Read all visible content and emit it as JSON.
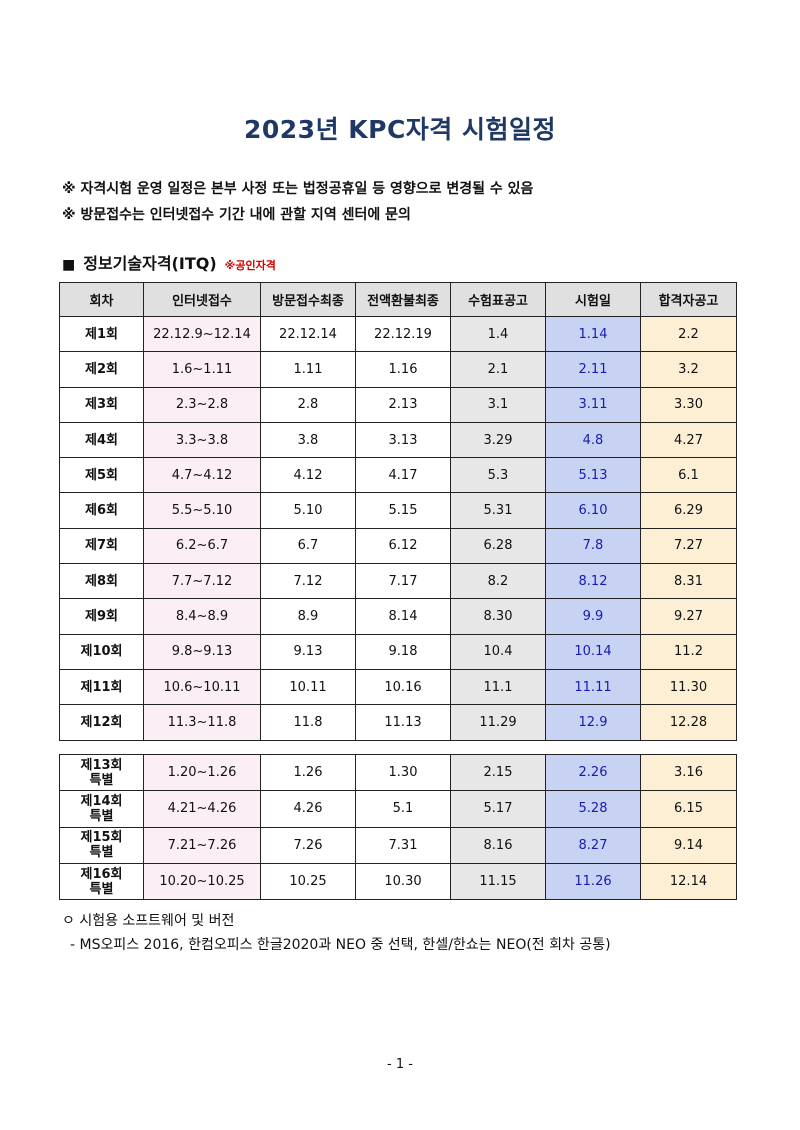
{
  "title": "2023년 KPC자격 시험일정",
  "notes": [
    "※ 자격시험 운영 일정은 본부 사정 또는 법정공휴일 등 영향으로 변경될 수 있음",
    "※ 방문접수는 인터넷접수 기간 내에 관할 지역 센터에 문의"
  ],
  "section": {
    "bullet": "■",
    "title": "정보기술자격(ITQ)",
    "tag": "※공인자격"
  },
  "table": {
    "headers": [
      "회차",
      "인터넷접수",
      "방문접수최종",
      "전액환불최종",
      "수험표공고",
      "시험일",
      "합격자공고"
    ],
    "rows": [
      [
        "제1회",
        "22.12.9~12.14",
        "22.12.14",
        "22.12.19",
        "1.4",
        "1.14",
        "2.2"
      ],
      [
        "제2회",
        "1.6~1.11",
        "1.11",
        "1.16",
        "2.1",
        "2.11",
        "3.2"
      ],
      [
        "제3회",
        "2.3~2.8",
        "2.8",
        "2.13",
        "3.1",
        "3.11",
        "3.30"
      ],
      [
        "제4회",
        "3.3~3.8",
        "3.8",
        "3.13",
        "3.29",
        "4.8",
        "4.27"
      ],
      [
        "제5회",
        "4.7~4.12",
        "4.12",
        "4.17",
        "5.3",
        "5.13",
        "6.1"
      ],
      [
        "제6회",
        "5.5~5.10",
        "5.10",
        "5.15",
        "5.31",
        "6.10",
        "6.29"
      ],
      [
        "제7회",
        "6.2~6.7",
        "6.7",
        "6.12",
        "6.28",
        "7.8",
        "7.27"
      ],
      [
        "제8회",
        "7.7~7.12",
        "7.12",
        "7.17",
        "8.2",
        "8.12",
        "8.31"
      ],
      [
        "제9회",
        "8.4~8.9",
        "8.9",
        "8.14",
        "8.30",
        "9.9",
        "9.27"
      ],
      [
        "제10회",
        "9.8~9.13",
        "9.13",
        "9.18",
        "10.4",
        "10.14",
        "11.2"
      ],
      [
        "제11회",
        "10.6~10.11",
        "10.11",
        "10.16",
        "11.1",
        "11.11",
        "11.30"
      ],
      [
        "제12회",
        "11.3~11.8",
        "11.8",
        "11.13",
        "11.29",
        "12.9",
        "12.28"
      ]
    ],
    "special_rows": [
      [
        "제13회",
        "특별",
        "1.20~1.26",
        "1.26",
        "1.30",
        "2.15",
        "2.26",
        "3.16"
      ],
      [
        "제14회",
        "특별",
        "4.21~4.26",
        "4.26",
        "5.1",
        "5.17",
        "5.28",
        "6.15"
      ],
      [
        "제15회",
        "특별",
        "7.21~7.26",
        "7.26",
        "7.31",
        "8.16",
        "8.27",
        "9.14"
      ],
      [
        "제16회",
        "특별",
        "10.20~10.25",
        "10.25",
        "10.30",
        "11.15",
        "11.26",
        "12.14"
      ]
    ]
  },
  "software": {
    "heading": "ㅇ 시험용 소프트웨어 및 버전",
    "detail": "- MS오피스 2016, 한컴오피스 한글2020과 NEO 중 선택, 한셀/한쇼는 NEO(전 회차 공통)"
  },
  "page_number": "- 1 -",
  "colors": {
    "title": "#1f3864",
    "tag": "#d00000",
    "header_bg": "#e0e0e0",
    "internet_bg": "#fbeef5",
    "ticket_bg": "#e7e7e7",
    "exam_bg": "#c8d3f3",
    "exam_text": "#1a1ab0",
    "result_bg": "#fcefd4"
  }
}
